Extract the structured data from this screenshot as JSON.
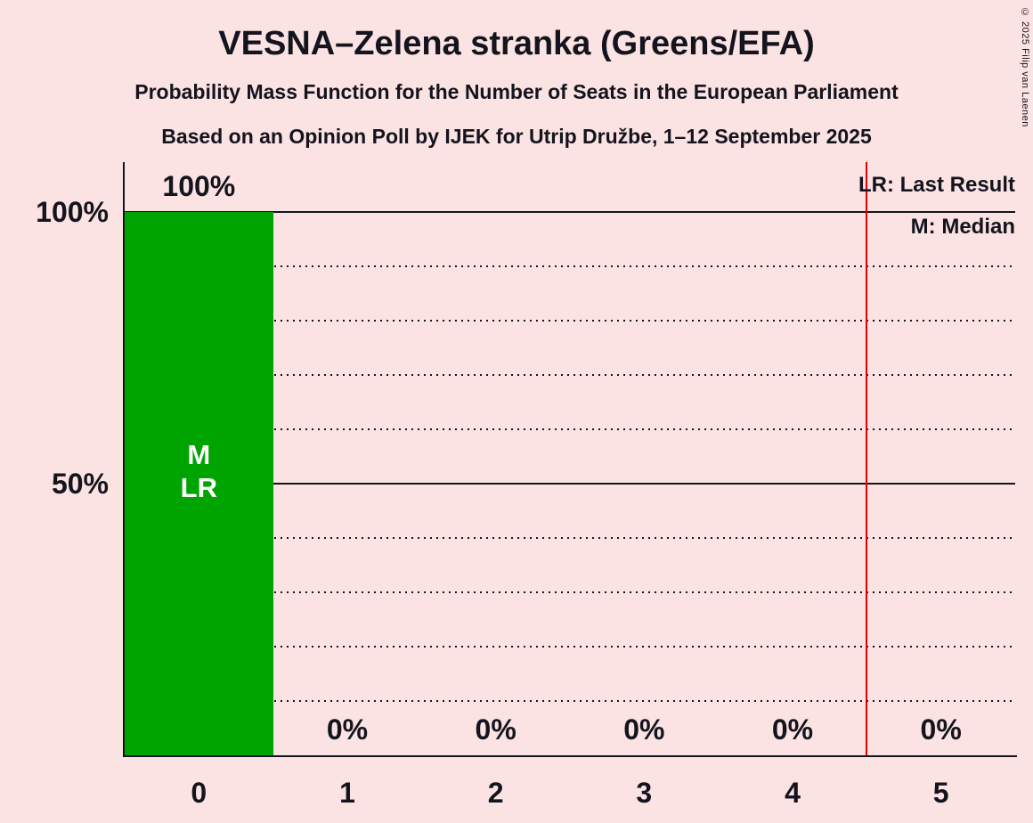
{
  "copyright": "© 2025 Filip van Laenen",
  "chart_data": {
    "type": "bar",
    "title": "VESNA–Zelena stranka (Greens/EFA)",
    "subtitle1": "Probability Mass Function for the Number of Seats in the European Parliament",
    "subtitle2": "Based on an Opinion Poll by IJEK for Utrip Družbe, 1–12 September 2025",
    "legend": {
      "lr": "LR: Last Result",
      "m": "M: Median"
    },
    "categories": [
      "0",
      "1",
      "2",
      "3",
      "4",
      "5"
    ],
    "values": [
      100,
      0,
      0,
      0,
      0,
      0
    ],
    "bar_labels": [
      "100%",
      "0%",
      "0%",
      "0%",
      "0%",
      "0%"
    ],
    "yticks": [
      {
        "value": 100,
        "label": "100%"
      },
      {
        "value": 50,
        "label": "50%"
      }
    ],
    "ylim": [
      0,
      100
    ],
    "grid": "dotted every 10%, solid at 50% and 100%",
    "legend_position": "top-right",
    "median": 0,
    "last_result": 0,
    "annotation": {
      "category": 0,
      "lines": [
        "M",
        "LR"
      ]
    },
    "vline_x": 4.5,
    "colors": {
      "bar": "#00A400",
      "vline": "#E00000",
      "background": "#FBE3E3",
      "text": "#14141E",
      "bar_text": "#FFFFFF"
    }
  }
}
